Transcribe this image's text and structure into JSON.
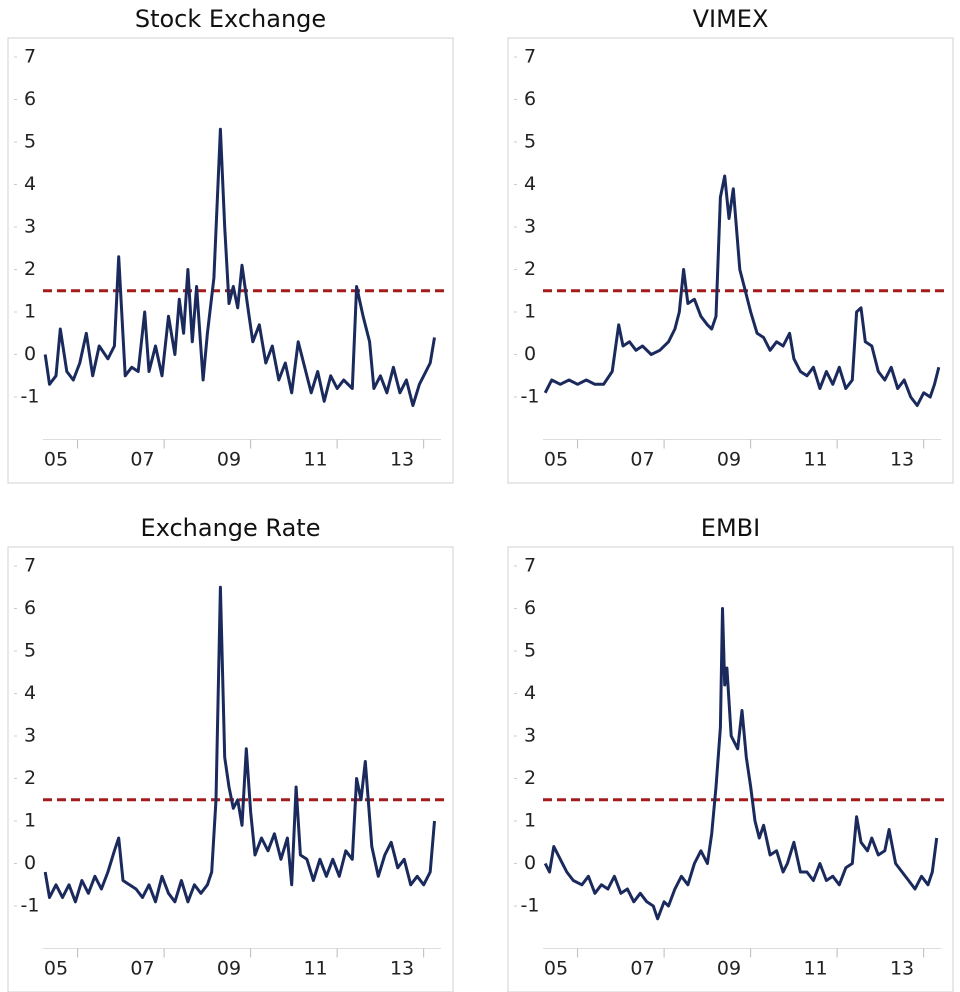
{
  "chart_data": [
    {
      "type": "line",
      "title": "Stock Exchange",
      "x": [
        2004.75,
        2004.85,
        2005.0,
        2005.1,
        2005.25,
        2005.4,
        2005.55,
        2005.7,
        2005.85,
        2006.0,
        2006.2,
        2006.35,
        2006.45,
        2006.6,
        2006.75,
        2006.9,
        2007.05,
        2007.15,
        2007.3,
        2007.45,
        2007.6,
        2007.75,
        2007.85,
        2007.95,
        2008.05,
        2008.15,
        2008.25,
        2008.4,
        2008.5,
        2008.65,
        2008.8,
        2008.9,
        2009.0,
        2009.1,
        2009.2,
        2009.3,
        2009.45,
        2009.55,
        2009.7,
        2009.85,
        2010.0,
        2010.15,
        2010.3,
        2010.45,
        2010.6,
        2010.75,
        2010.9,
        2011.05,
        2011.2,
        2011.35,
        2011.5,
        2011.65,
        2011.85,
        2011.95,
        2012.1,
        2012.25,
        2012.35,
        2012.5,
        2012.65,
        2012.8,
        2012.95,
        2013.1,
        2013.25,
        2013.4,
        2013.55,
        2013.65,
        2013.75
      ],
      "series": [
        {
          "color": "#1b2a5c",
          "values": [
            0.0,
            -0.7,
            -0.5,
            0.6,
            -0.4,
            -0.6,
            -0.2,
            0.5,
            -0.5,
            0.2,
            -0.1,
            0.2,
            2.3,
            -0.5,
            -0.3,
            -0.4,
            1.0,
            -0.4,
            0.2,
            -0.5,
            0.9,
            0.0,
            1.3,
            0.5,
            2.0,
            0.3,
            1.6,
            -0.6,
            0.5,
            1.8,
            5.3,
            3.0,
            1.2,
            1.6,
            1.1,
            2.1,
            1.0,
            0.3,
            0.7,
            -0.2,
            0.2,
            -0.6,
            -0.2,
            -0.9,
            0.3,
            -0.3,
            -0.9,
            -0.4,
            -1.1,
            -0.5,
            -0.8,
            -0.6,
            -0.8,
            1.6,
            0.9,
            0.3,
            -0.8,
            -0.5,
            -0.9,
            -0.3,
            -0.9,
            -0.6,
            -1.2,
            -0.7,
            -0.4,
            -0.2,
            0.4
          ]
        }
      ],
      "threshold": 1.5,
      "threshold_color": "#a31c1c",
      "xlim": [
        2004.7,
        2013.9
      ],
      "xticks": [
        {
          "value": 2005,
          "label": "05"
        },
        {
          "value": 2007,
          "label": "07"
        },
        {
          "value": 2009,
          "label": "09"
        },
        {
          "value": 2011,
          "label": "11"
        },
        {
          "value": 2013,
          "label": "13"
        }
      ],
      "ylim": [
        -2,
        7.4
      ],
      "yticks": [
        -1,
        0,
        1,
        2,
        3,
        4,
        5,
        6,
        7
      ]
    },
    {
      "type": "line",
      "title": "VIMEX",
      "x": [
        2004.75,
        2004.9,
        2005.1,
        2005.3,
        2005.5,
        2005.7,
        2005.9,
        2006.1,
        2006.3,
        2006.45,
        2006.55,
        2006.7,
        2006.85,
        2007.0,
        2007.2,
        2007.4,
        2007.6,
        2007.75,
        2007.85,
        2007.95,
        2008.05,
        2008.2,
        2008.35,
        2008.5,
        2008.6,
        2008.7,
        2008.8,
        2008.9,
        2009.0,
        2009.1,
        2009.25,
        2009.35,
        2009.5,
        2009.65,
        2009.8,
        2009.95,
        2010.1,
        2010.25,
        2010.4,
        2010.5,
        2010.65,
        2010.8,
        2010.95,
        2011.1,
        2011.25,
        2011.4,
        2011.55,
        2011.7,
        2011.85,
        2011.95,
        2012.05,
        2012.15,
        2012.3,
        2012.45,
        2012.6,
        2012.75,
        2012.9,
        2013.05,
        2013.2,
        2013.35,
        2013.5,
        2013.65,
        2013.75,
        2013.85
      ],
      "series": [
        {
          "color": "#1b2a5c",
          "values": [
            -0.9,
            -0.6,
            -0.7,
            -0.6,
            -0.7,
            -0.6,
            -0.7,
            -0.7,
            -0.4,
            0.7,
            0.2,
            0.3,
            0.1,
            0.2,
            0.0,
            0.1,
            0.3,
            0.6,
            1.0,
            2.0,
            1.2,
            1.3,
            0.9,
            0.7,
            0.6,
            0.9,
            3.7,
            4.2,
            3.2,
            3.9,
            2.0,
            1.6,
            1.0,
            0.5,
            0.4,
            0.1,
            0.3,
            0.2,
            0.5,
            -0.1,
            -0.4,
            -0.5,
            -0.3,
            -0.8,
            -0.4,
            -0.7,
            -0.3,
            -0.8,
            -0.6,
            1.0,
            1.1,
            0.3,
            0.2,
            -0.4,
            -0.6,
            -0.3,
            -0.8,
            -0.6,
            -1.0,
            -1.2,
            -0.9,
            -1.0,
            -0.7,
            -0.3
          ]
        }
      ],
      "threshold": 1.5,
      "threshold_color": "#a31c1c",
      "xlim": [
        2004.7,
        2013.9
      ],
      "xticks": [
        {
          "value": 2005,
          "label": "05"
        },
        {
          "value": 2007,
          "label": "07"
        },
        {
          "value": 2009,
          "label": "09"
        },
        {
          "value": 2011,
          "label": "11"
        },
        {
          "value": 2013,
          "label": "13"
        }
      ],
      "ylim": [
        -2,
        7.4
      ],
      "yticks": [
        -1,
        0,
        1,
        2,
        3,
        4,
        5,
        6,
        7
      ]
    },
    {
      "type": "line",
      "title": "Exchange Rate",
      "x": [
        2004.75,
        2004.85,
        2005.0,
        2005.15,
        2005.3,
        2005.45,
        2005.6,
        2005.75,
        2005.9,
        2006.05,
        2006.2,
        2006.35,
        2006.45,
        2006.55,
        2006.7,
        2006.85,
        2007.0,
        2007.15,
        2007.3,
        2007.45,
        2007.6,
        2007.75,
        2007.9,
        2008.05,
        2008.2,
        2008.35,
        2008.5,
        2008.6,
        2008.7,
        2008.8,
        2008.9,
        2009.0,
        2009.1,
        2009.2,
        2009.3,
        2009.4,
        2009.5,
        2009.6,
        2009.75,
        2009.9,
        2010.05,
        2010.2,
        2010.35,
        2010.45,
        2010.55,
        2010.65,
        2010.8,
        2010.95,
        2011.1,
        2011.25,
        2011.4,
        2011.55,
        2011.7,
        2011.85,
        2011.95,
        2012.05,
        2012.15,
        2012.3,
        2012.45,
        2012.6,
        2012.75,
        2012.9,
        2013.05,
        2013.2,
        2013.35,
        2013.5,
        2013.65,
        2013.75
      ],
      "series": [
        {
          "color": "#1b2a5c",
          "values": [
            -0.2,
            -0.8,
            -0.5,
            -0.8,
            -0.5,
            -0.9,
            -0.4,
            -0.7,
            -0.3,
            -0.6,
            -0.2,
            0.3,
            0.6,
            -0.4,
            -0.5,
            -0.6,
            -0.8,
            -0.5,
            -0.9,
            -0.3,
            -0.7,
            -0.9,
            -0.4,
            -0.9,
            -0.5,
            -0.7,
            -0.5,
            -0.2,
            1.5,
            6.5,
            2.5,
            1.8,
            1.3,
            1.5,
            0.9,
            2.7,
            1.2,
            0.2,
            0.6,
            0.3,
            0.7,
            0.1,
            0.6,
            -0.5,
            1.8,
            0.2,
            0.1,
            -0.4,
            0.1,
            -0.3,
            0.1,
            -0.3,
            0.3,
            0.1,
            2.0,
            1.5,
            2.4,
            0.4,
            -0.3,
            0.2,
            0.5,
            -0.1,
            0.1,
            -0.5,
            -0.3,
            -0.5,
            -0.2,
            1.0
          ]
        }
      ],
      "threshold": 1.5,
      "threshold_color": "#a31c1c",
      "xlim": [
        2004.7,
        2013.9
      ],
      "xticks": [
        {
          "value": 2005,
          "label": "05"
        },
        {
          "value": 2007,
          "label": "07"
        },
        {
          "value": 2009,
          "label": "09"
        },
        {
          "value": 2011,
          "label": "11"
        },
        {
          "value": 2013,
          "label": "13"
        }
      ],
      "ylim": [
        -2,
        7.4
      ],
      "yticks": [
        -1,
        0,
        1,
        2,
        3,
        4,
        5,
        6,
        7
      ]
    },
    {
      "type": "line",
      "title": "EMBI",
      "x": [
        2004.75,
        2004.85,
        2004.95,
        2005.1,
        2005.25,
        2005.4,
        2005.6,
        2005.75,
        2005.9,
        2006.05,
        2006.2,
        2006.35,
        2006.5,
        2006.65,
        2006.8,
        2006.95,
        2007.1,
        2007.25,
        2007.35,
        2007.5,
        2007.6,
        2007.75,
        2007.9,
        2008.05,
        2008.2,
        2008.35,
        2008.5,
        2008.6,
        2008.7,
        2008.8,
        2008.85,
        2008.9,
        2008.95,
        2009.05,
        2009.2,
        2009.3,
        2009.4,
        2009.5,
        2009.6,
        2009.7,
        2009.8,
        2009.95,
        2010.1,
        2010.25,
        2010.35,
        2010.5,
        2010.65,
        2010.8,
        2010.95,
        2011.1,
        2011.25,
        2011.4,
        2011.55,
        2011.7,
        2011.85,
        2011.95,
        2012.05,
        2012.2,
        2012.3,
        2012.45,
        2012.6,
        2012.7,
        2012.85,
        2013.0,
        2013.15,
        2013.3,
        2013.45,
        2013.6,
        2013.7,
        2013.8
      ],
      "series": [
        {
          "color": "#1b2a5c",
          "values": [
            0.0,
            -0.2,
            0.4,
            0.1,
            -0.2,
            -0.4,
            -0.5,
            -0.3,
            -0.7,
            -0.5,
            -0.6,
            -0.3,
            -0.7,
            -0.6,
            -0.9,
            -0.7,
            -0.9,
            -1.0,
            -1.3,
            -0.9,
            -1.0,
            -0.6,
            -0.3,
            -0.5,
            0.0,
            0.3,
            0.0,
            0.7,
            1.8,
            3.2,
            6.0,
            4.2,
            4.6,
            3.0,
            2.7,
            3.6,
            2.5,
            1.8,
            1.0,
            0.6,
            0.9,
            0.2,
            0.3,
            -0.2,
            0.0,
            0.5,
            -0.2,
            -0.2,
            -0.4,
            0.0,
            -0.4,
            -0.3,
            -0.5,
            -0.1,
            0.0,
            1.1,
            0.5,
            0.3,
            0.6,
            0.2,
            0.3,
            0.8,
            0.0,
            -0.2,
            -0.4,
            -0.6,
            -0.3,
            -0.5,
            -0.2,
            0.6
          ]
        }
      ],
      "threshold": 1.5,
      "threshold_color": "#a31c1c",
      "xlim": [
        2004.7,
        2013.9
      ],
      "xticks": [
        {
          "value": 2005,
          "label": "05"
        },
        {
          "value": 2007,
          "label": "07"
        },
        {
          "value": 2009,
          "label": "09"
        },
        {
          "value": 2011,
          "label": "11"
        },
        {
          "value": 2013,
          "label": "13"
        }
      ],
      "ylim": [
        -2,
        7.4
      ],
      "yticks": [
        -1,
        0,
        1,
        2,
        3,
        4,
        5,
        6,
        7
      ]
    }
  ]
}
